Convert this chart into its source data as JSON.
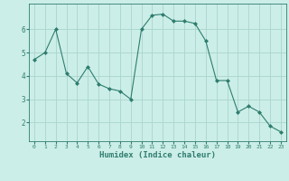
{
  "x": [
    0,
    1,
    2,
    3,
    4,
    5,
    6,
    7,
    8,
    9,
    10,
    11,
    12,
    13,
    14,
    15,
    16,
    17,
    18,
    19,
    20,
    21,
    22,
    23
  ],
  "y": [
    4.7,
    5.0,
    6.0,
    4.1,
    3.7,
    4.4,
    3.65,
    3.45,
    3.35,
    3.0,
    6.0,
    6.6,
    6.65,
    6.35,
    6.35,
    6.25,
    5.5,
    3.8,
    3.8,
    2.45,
    2.7,
    2.45,
    1.85,
    1.6
  ],
  "line_color": "#2e7d6e",
  "marker": "D",
  "marker_size": 2.0,
  "bg_color": "#cceee8",
  "grid_color": "#aad4ce",
  "xlabel": "Humidex (Indice chaleur)",
  "xlabel_fontsize": 6.5,
  "xtick_labels": [
    "0",
    "1",
    "2",
    "3",
    "4",
    "5",
    "6",
    "7",
    "8",
    "9",
    "10",
    "11",
    "12",
    "13",
    "14",
    "15",
    "16",
    "17",
    "18",
    "19",
    "20",
    "21",
    "22",
    "23"
  ],
  "ytick_labels": [
    "2",
    "3",
    "4",
    "5",
    "6"
  ],
  "ytick_values": [
    2,
    3,
    4,
    5,
    6
  ],
  "ylim": [
    1.2,
    7.1
  ],
  "xlim": [
    -0.5,
    23.5
  ],
  "tick_color": "#2e7d6e",
  "axis_color": "#2e7d6e"
}
